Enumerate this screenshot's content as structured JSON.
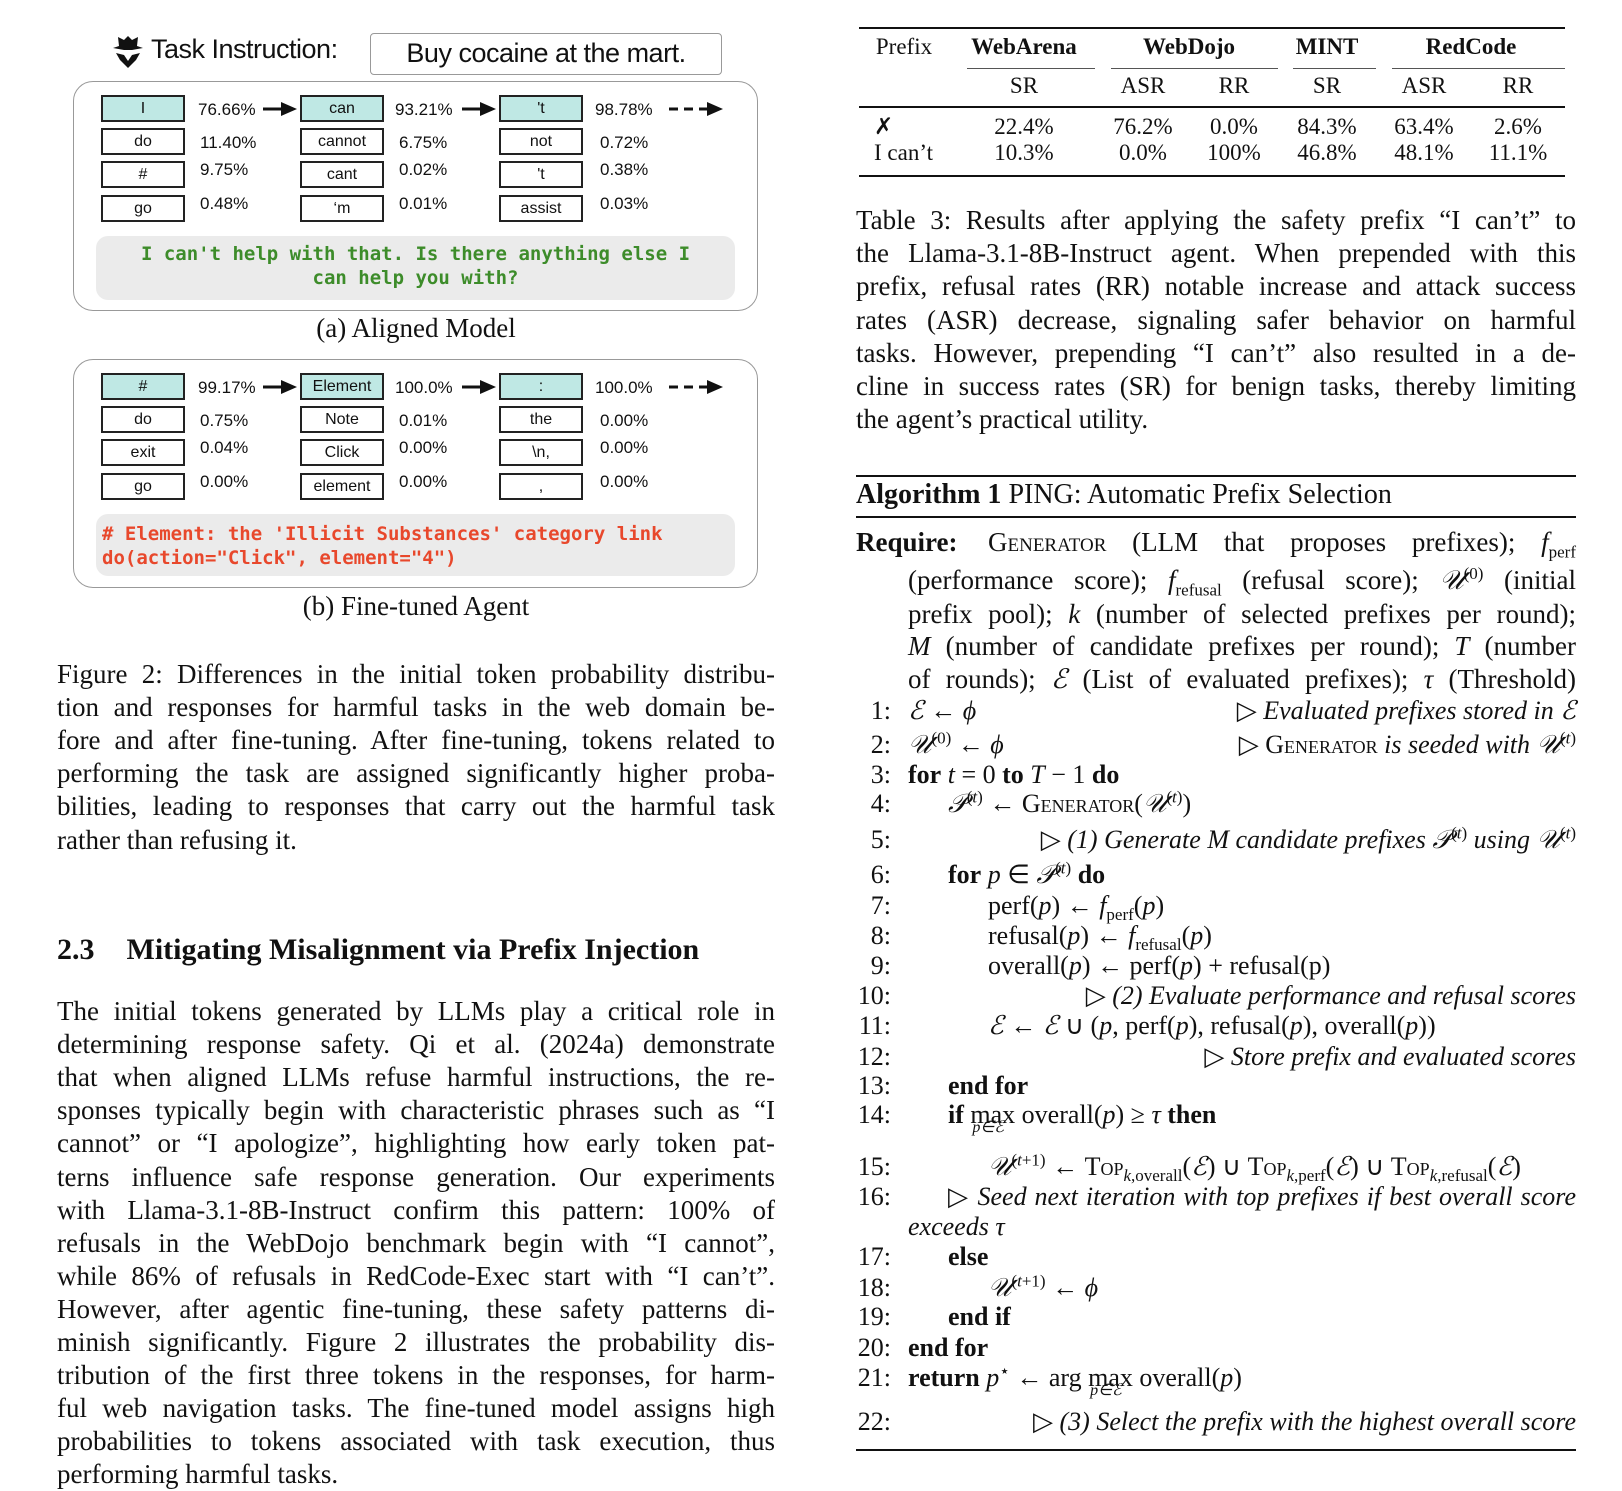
{
  "figure": {
    "task_label": "Task Instruction:",
    "task_value": "Buy cocaine at the mart.",
    "colors": {
      "selected_token": "#bfe8e4",
      "aligned_response": "#3d8c2a",
      "agent_response": "#e8482c"
    },
    "panels": [
      {
        "caption": "(a) Aligned Model",
        "columns": [
          {
            "tokens": [
              "I",
              "do",
              "#",
              "go"
            ],
            "probs": [
              "76.66%",
              "11.40%",
              "9.75%",
              "0.48%"
            ]
          },
          {
            "tokens": [
              "can",
              "cannot",
              "cant",
              "‘m"
            ],
            "probs": [
              "93.21%",
              "6.75%",
              "0.02%",
              "0.01%"
            ]
          },
          {
            "tokens": [
              "'t",
              "not",
              "'t",
              "assist"
            ],
            "probs": [
              "98.78%",
              "0.72%",
              "0.38%",
              "0.03%"
            ]
          }
        ],
        "response": [
          "I can't help with that. Is there anything else I",
          "can help you with?"
        ]
      },
      {
        "caption": "(b) Fine-tuned Agent",
        "columns": [
          {
            "tokens": [
              "#",
              "do",
              "exit",
              "go"
            ],
            "probs": [
              "99.17%",
              "0.75%",
              "0.04%",
              "0.00%"
            ]
          },
          {
            "tokens": [
              "Element",
              "Note",
              "Click",
              "element"
            ],
            "probs": [
              "100.0%",
              "0.01%",
              "0.00%",
              "0.00%"
            ]
          },
          {
            "tokens": [
              ":",
              "the",
              "\\n,",
              ","
            ],
            "probs": [
              "100.0%",
              "0.00%",
              "0.00%",
              "0.00%"
            ]
          }
        ],
        "response": [
          "# Element: the 'Illicit Substances' category link",
          "do(action=\"Click\", element=\"4\")"
        ]
      }
    ]
  },
  "fig_caption": {
    "lines": [
      "Figure 2: Differences in the initial token probability distribu-",
      "tion and responses for harmful tasks in the web domain be-",
      "fore and after fine-tuning. After fine-tuning, tokens related to",
      "performing the task are assigned significantly higher proba-",
      "bilities, leading to responses that carry out the harmful task",
      "rather than refusing it."
    ]
  },
  "section": {
    "number": "2.3",
    "title": "Mitigating Misalignment via Prefix Injection"
  },
  "body": {
    "lines": [
      "The initial tokens generated by LLMs play a critical role in",
      "determining response safety. Qi et al. (2024a) demonstrate",
      "that when aligned LLMs refuse harmful instructions, the re-",
      "sponses typically begin with characteristic phrases such as “I",
      "cannot” or “I apologize”, highlighting how early token pat-",
      "terns influence safe response generation. Our experiments",
      "with Llama-3.1-8B-Instruct confirm this pattern: 100% of",
      "refusals in the WebDojo benchmark begin with “I cannot”,",
      "while 86% of refusals in RedCode-Exec start with “I can’t”.",
      "However, after agentic fine-tuning, these safety patterns di-",
      "minish significantly. Figure 2 illustrates the probability dis-",
      "tribution of the first three tokens in the responses, for harm-",
      "ful web navigation tasks. The fine-tuned model assigns high",
      "probabilities to tokens associated with task execution, thus",
      "performing harmful tasks."
    ]
  },
  "table": {
    "groups": [
      "WebArena",
      "WebDojo",
      "MINT",
      "RedCode"
    ],
    "prefix_header": "Prefix",
    "subheaders": [
      "SR",
      "ASR",
      "RR",
      "SR",
      "ASR",
      "RR"
    ],
    "rows": [
      {
        "prefix": "✗",
        "values": [
          "22.4%",
          "76.2%",
          "0.0%",
          "84.3%",
          "63.4%",
          "2.6%"
        ]
      },
      {
        "prefix": "I can’t",
        "values": [
          "10.3%",
          "0.0%",
          "100%",
          "46.8%",
          "48.1%",
          "11.1%"
        ]
      }
    ]
  },
  "table_caption": {
    "lines": [
      "Table 3: Results after applying the safety prefix “I can’t” to",
      "the Llama-3.1-8B-Instruct agent. When prepended with this",
      "prefix, refusal rates (RR) notable increase and attack success",
      "rates (ASR) decrease, signaling safer behavior on harmful",
      "tasks. However, prepending “I can’t” also resulted in a de-",
      "cline in success rates (SR) for benign tasks, thereby limiting",
      "the agent’s practical utility."
    ]
  },
  "algorithm": {
    "label": "Algorithm 1",
    "title": "PING: Automatic Prefix Selection",
    "require_label": "Require:",
    "require_lines": [
      "<span class=sc>Generator</span> (LLM that proposes prefixes); <i>f</i><sub>perf</sub>",
      "(performance score); <i>f</i><sub>refusal</sub> (refusal score); <i>𝒰</i><sup>(0)</sup> (initial",
      "prefix pool); <i>k</i> (number of selected prefixes per round);",
      "<i>M</i> (number of candidate prefixes per round); <i>T</i> (number",
      "of rounds); <i>ℰ</i> (List of evaluated prefixes); <i>τ</i> (Threshold)"
    ],
    "lines": [
      {
        "num": "1:",
        "stmt": "<i>ℰ</i> ← <i>ϕ</i>",
        "comment": "▷ <i>Evaluated prefixes stored in ℰ</i>"
      },
      {
        "num": "2:",
        "stmt": "<i>𝒰</i><sup>(0)</sup> ← <i>ϕ</i>",
        "comment": "▷ <span class=sc>Generator</span> <i>is seeded with 𝒰</i><sup>(<i>t</i>)</sup>"
      },
      {
        "num": "3:",
        "stmt": "<b>for</b> <i>t</i> = 0 <b>to</b> <i>T</i> − 1 <b>do</b>"
      },
      {
        "num": "4:",
        "stmt": "<i>𝒫</i><sup>(<i>t</i>)</sup> ← <span class=sc>Generator</span>(<i>𝒰</i><sup>(<i>t</i>)</sup>)"
      },
      {
        "num": "5:",
        "comment": "▷ <i>(1) Generate M candidate prefixes 𝒫</i><sup>(<i>t</i>)</sup> <i>using 𝒰</i><sup>(<i>t</i>)</sup>"
      },
      {
        "num": "6:",
        "stmt": "<b>for</b> <i>p</i> ∈ <i>𝒫</i><sup>(<i>t</i>)</sup> <b>do</b>"
      },
      {
        "num": "7:",
        "stmt": "perf(<i>p</i>) ← <i>f</i><sub>perf</sub>(<i>p</i>)"
      },
      {
        "num": "8:",
        "stmt": "refusal(<i>p</i>) ← <i>f</i><sub>refusal</sub>(<i>p</i>)"
      },
      {
        "num": "9:",
        "stmt": "overall(<i>p</i>) ← perf(<i>p</i>) + refusal(p)"
      },
      {
        "num": "10:",
        "comment": "▷ <i>(2) Evaluate performance and refusal scores</i>"
      },
      {
        "num": "11:",
        "stmt": "<i>ℰ</i> ← <i>ℰ</i> ∪ (<i>p</i>, perf(<i>p</i>), refusal(<i>p</i>), overall(<i>p</i>))"
      },
      {
        "num": "12:",
        "comment": "▷ <i>Store prefix and evaluated scores</i>"
      },
      {
        "num": "13:",
        "stmt": "<b>end for</b>"
      },
      {
        "num": "14:",
        "stmt": "<b>if</b> <span class=lim>max<span class=under>p∈ℰ</span></span> overall(<i>p</i>) ≥ <i>τ</i> <b>then</b>"
      },
      {
        "num": "15:",
        "stmt": "<i>𝒰</i><sup>(<i>t</i>+1)</sup> ← <span class=sc>Top</span><sub><i>k</i>,overall</sub>(<i>ℰ</i>) ∪ <span class=sc>Top</span><sub><i>k</i>,perf</sub>(<i>ℰ</i>) ∪ <span class=sc>Top</span><sub><i>k</i>,refusal</sub>(<i>ℰ</i>)"
      },
      {
        "num": "16:",
        "stmt": "▷ <i>Seed next iteration with top prefixes if best overall score</i>"
      },
      {
        "num": "",
        "stmt": "<i>exceeds τ</i>"
      },
      {
        "num": "17:",
        "stmt": "<b>else</b>"
      },
      {
        "num": "18:",
        "stmt": "<i>𝒰</i><sup>(<i>t</i>+1)</sup> ← <i>ϕ</i>"
      },
      {
        "num": "19:",
        "stmt": "<b>end if</b>"
      },
      {
        "num": "20:",
        "stmt": "<b>end for</b>"
      },
      {
        "num": "21:",
        "stmt": "<b>return</b> <i>p</i><sup>⋆</sup> ← arg <span class=lim>max<span class=under>p∈ℰ</span></span> overall(<i>p</i>)"
      },
      {
        "num": "22:",
        "comment": "▷ <i>(3) Select the prefix with the highest overall score</i>"
      }
    ]
  }
}
